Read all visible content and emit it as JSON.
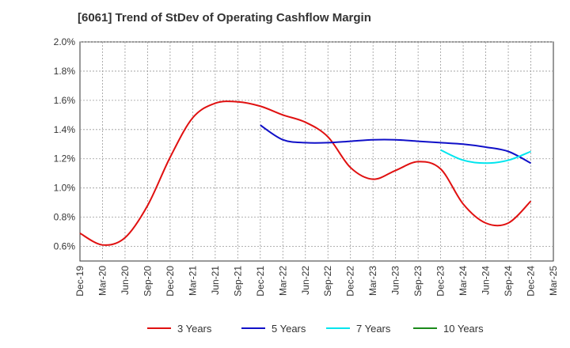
{
  "chart_data": {
    "type": "line",
    "title": "[6061]  Trend of StDev of Operating Cashflow Margin",
    "xlabel": "",
    "ylabel": "",
    "ylim": [
      0.5,
      2.0
    ],
    "yticks": [
      "0.6%",
      "0.8%",
      "1.0%",
      "1.2%",
      "1.4%",
      "1.6%",
      "1.8%",
      "2.0%"
    ],
    "ytick_values": [
      0.6,
      0.8,
      1.0,
      1.2,
      1.4,
      1.6,
      1.8,
      2.0
    ],
    "categories": [
      "Dec-19",
      "Mar-20",
      "Jun-20",
      "Sep-20",
      "Dec-20",
      "Mar-21",
      "Jun-21",
      "Sep-21",
      "Dec-21",
      "Mar-22",
      "Jun-22",
      "Sep-22",
      "Dec-22",
      "Mar-23",
      "Jun-23",
      "Sep-23",
      "Dec-23",
      "Mar-24",
      "Jun-24",
      "Sep-24",
      "Dec-24",
      "Mar-25"
    ],
    "grid": true,
    "legend_position": "bottom",
    "series": [
      {
        "name": "3 Years",
        "color": "#e01010",
        "values": [
          0.69,
          0.61,
          0.66,
          0.88,
          1.21,
          1.48,
          1.58,
          1.59,
          1.56,
          1.5,
          1.45,
          1.35,
          1.14,
          1.06,
          1.12,
          1.18,
          1.13,
          0.89,
          0.76,
          0.76,
          0.91,
          null
        ]
      },
      {
        "name": "5 Years",
        "color": "#1010c8",
        "values": [
          null,
          null,
          null,
          null,
          null,
          null,
          null,
          null,
          1.43,
          1.33,
          1.31,
          1.31,
          1.32,
          1.33,
          1.33,
          1.32,
          1.31,
          1.3,
          1.28,
          1.25,
          1.17,
          null
        ]
      },
      {
        "name": "7 Years",
        "color": "#00e5ee",
        "values": [
          null,
          null,
          null,
          null,
          null,
          null,
          null,
          null,
          null,
          null,
          null,
          null,
          null,
          null,
          null,
          null,
          1.26,
          1.19,
          1.17,
          1.19,
          1.25,
          null
        ]
      },
      {
        "name": "10 Years",
        "color": "#1a8a1a",
        "values": [
          null,
          null,
          null,
          null,
          null,
          null,
          null,
          null,
          null,
          null,
          null,
          null,
          null,
          null,
          null,
          null,
          null,
          null,
          null,
          null,
          null,
          null
        ]
      }
    ]
  }
}
